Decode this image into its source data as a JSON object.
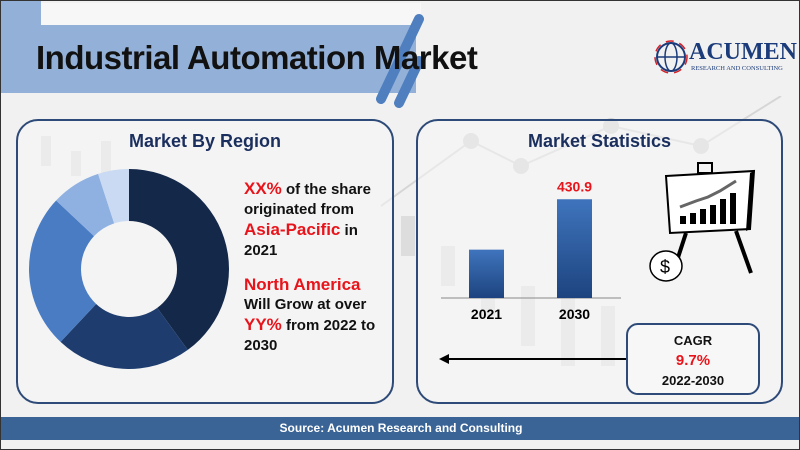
{
  "header": {
    "title": "Industrial Automation Market"
  },
  "logo": {
    "name": "ACUMEN",
    "tagline": "RESEARCH AND CONSULTING"
  },
  "region_panel": {
    "title": "Market By Region",
    "line1_highlight": "XX%",
    "line1_rest": " of the share",
    "line2": "originated from",
    "line3_highlight": "Asia-Pacific",
    "line3_rest": " in",
    "line4": "2021",
    "line5_highlight": "North America",
    "line6": "Will Grow at over",
    "line7_highlight": "YY%",
    "line7_rest": " from 2022 to",
    "line8": "2030"
  },
  "stats_panel": {
    "title": "Market Statistics",
    "cagr_label": "CAGR",
    "cagr_value": "9.7%",
    "cagr_period": "2022-2030"
  },
  "footer": {
    "source": "Source: Acumen Research and Consulting"
  },
  "colors": {
    "accent_red": "#e8141b",
    "navy": "#2e4a78",
    "footer": "#3a6496"
  },
  "chart_data": [
    {
      "type": "pie",
      "variant": "donut",
      "values": [
        40,
        22,
        25,
        8,
        5
      ],
      "colors": [
        "#14284a",
        "#1e3d6e",
        "#4a7cc4",
        "#8fb1e2",
        "#c9daf2"
      ]
    },
    {
      "type": "bar",
      "categories": [
        "2021",
        "2030"
      ],
      "values": [
        211,
        430.9
      ],
      "data_labels": [
        "",
        "430.9"
      ],
      "colors": [
        "#2c5da0"
      ],
      "ylim": [
        0,
        480
      ]
    }
  ]
}
